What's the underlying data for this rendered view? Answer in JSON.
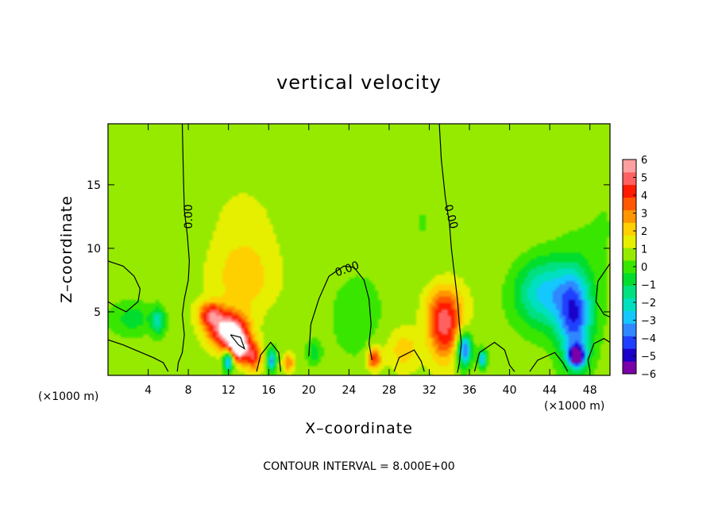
{
  "chart_data": {
    "type": "heatmap",
    "title": "vertical velocity",
    "xlabel": "X–coordinate",
    "ylabel": "Z–coordinate",
    "x_unit_left": "(×1000 m)",
    "x_unit_right": "(×1000 m)",
    "footer": "CONTOUR INTERVAL = 8.000E+00",
    "xlim": [
      0,
      50
    ],
    "ylim": [
      0,
      19.8
    ],
    "x_ticks": [
      4,
      8,
      12,
      16,
      20,
      24,
      28,
      32,
      36,
      40,
      44,
      48
    ],
    "x_tick_labels": [
      "4",
      "8",
      "12",
      "16",
      "20",
      "24",
      "28",
      "32",
      "36",
      "40",
      "44",
      "48"
    ],
    "y_ticks": [
      5,
      10,
      15
    ],
    "y_tick_labels": [
      "5",
      "10",
      "15"
    ],
    "colorbar": {
      "min": -6,
      "max": 6,
      "tick_values": [
        6,
        5,
        4,
        3,
        2,
        1,
        0,
        -1,
        -2,
        -3,
        -4,
        -5,
        -6
      ],
      "tick_labels": [
        "6",
        "5",
        "4",
        "3",
        "2",
        "1",
        "0",
        "−1",
        "−2",
        "−3",
        "−4",
        "−5",
        "−6"
      ],
      "colors": [
        "#7a00a8",
        "#1a00c8",
        "#2040ff",
        "#2f88ff",
        "#14c8ff",
        "#00e0c0",
        "#00e080",
        "#00dd2e",
        "#39e600",
        "#96ea00",
        "#e6ef00",
        "#ffd000",
        "#ff9600",
        "#ff5800",
        "#ff1a00",
        "#ff6060",
        "#ffa0a0"
      ]
    },
    "contour_labels": [
      "0.00",
      "0.00",
      "0.00"
    ],
    "features": [
      {
        "x": 12.0,
        "z": 3.5,
        "value": 6,
        "sx": 1.3,
        "sz": 1.0
      },
      {
        "x": 13.0,
        "z": 2.2,
        "value": 6,
        "sx": 0.7,
        "sz": 0.8
      },
      {
        "x": 10.2,
        "z": 4.8,
        "value": 3.5,
        "sx": 0.9,
        "sz": 0.7
      },
      {
        "x": 14.5,
        "z": 1.5,
        "value": 3.5,
        "sx": 0.6,
        "sz": 0.8
      },
      {
        "x": 12.0,
        "z": 1.2,
        "value": -5,
        "sx": 0.35,
        "sz": 0.6
      },
      {
        "x": 16.3,
        "z": 1.2,
        "value": -4,
        "sx": 0.3,
        "sz": 0.6
      },
      {
        "x": 18.0,
        "z": 1.0,
        "value": 2.5,
        "sx": 0.4,
        "sz": 0.5
      },
      {
        "x": 20.5,
        "z": 1.8,
        "value": -1.5,
        "sx": 0.5,
        "sz": 0.7
      },
      {
        "x": 26.5,
        "z": 1.3,
        "value": 3.5,
        "sx": 0.5,
        "sz": 0.6
      },
      {
        "x": 29.5,
        "z": 2.0,
        "value": 1.5,
        "sx": 1.2,
        "sz": 1.2
      },
      {
        "x": 33.5,
        "z": 3.5,
        "value": 3.5,
        "sx": 1.1,
        "sz": 1.8
      },
      {
        "x": 33.5,
        "z": 5.5,
        "value": 1.8,
        "sx": 1.5,
        "sz": 1.5
      },
      {
        "x": 35.5,
        "z": 2.0,
        "value": -5,
        "sx": 0.5,
        "sz": 0.9
      },
      {
        "x": 37.3,
        "z": 1.3,
        "value": -4,
        "sx": 0.3,
        "sz": 0.5
      },
      {
        "x": 46.5,
        "z": 4.5,
        "value": -4.5,
        "sx": 1.2,
        "sz": 2.5
      },
      {
        "x": 46.7,
        "z": 1.5,
        "value": -6,
        "sx": 0.6,
        "sz": 0.6
      },
      {
        "x": 43.5,
        "z": 6.5,
        "value": -3.5,
        "sx": 2.2,
        "sz": 2.0
      },
      {
        "x": 2.5,
        "z": 4.5,
        "value": -1.5,
        "sx": 1.5,
        "sz": 1.0
      },
      {
        "x": 5.0,
        "z": 4.3,
        "value": -2.5,
        "sx": 0.5,
        "sz": 0.8
      },
      {
        "x": 13.5,
        "z": 7.5,
        "value": 1.6,
        "sx": 2.2,
        "sz": 2.0
      },
      {
        "x": 13.5,
        "z": 12.0,
        "value": 0.9,
        "sx": 2.5,
        "sz": 3.0
      },
      {
        "x": 24.5,
        "z": 5.0,
        "value": -1.0,
        "sx": 1.8,
        "sz": 2.5
      }
    ]
  }
}
